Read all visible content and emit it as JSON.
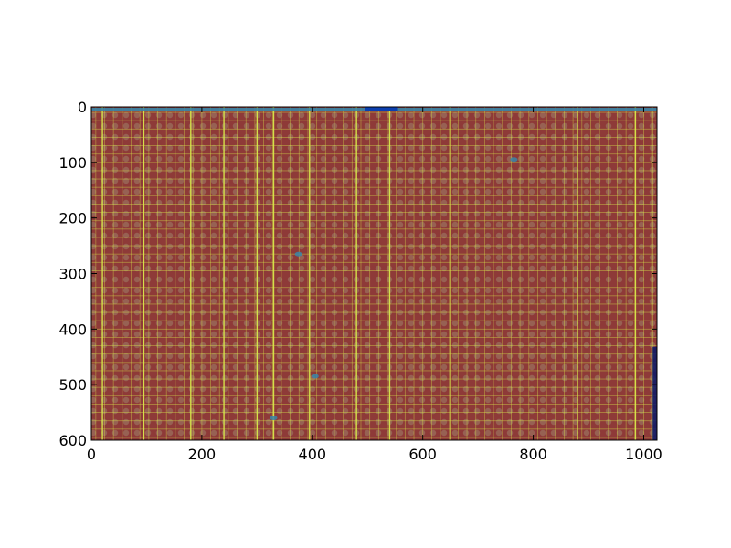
{
  "chart_data": {
    "type": "heatmap",
    "title": "",
    "xlabel": "",
    "ylabel": "",
    "xlim": [
      0,
      1024
    ],
    "ylim": [
      600,
      0
    ],
    "y_axis_inverted": true,
    "grid": false,
    "xticks": [
      0,
      200,
      400,
      600,
      800,
      1000
    ],
    "xtick_labels": [
      "0",
      "200",
      "400",
      "600",
      "800",
      "1000"
    ],
    "yticks": [
      0,
      100,
      200,
      300,
      400,
      500,
      600
    ],
    "ytick_labels": [
      "0",
      "100",
      "200",
      "300",
      "400",
      "500",
      "600"
    ],
    "image_description_colormap": "jet-like",
    "colors": {
      "dominant": "#8e3a38",
      "spot": "#9a6a5a",
      "grid_line": "#d8e84a",
      "top_band": "#3a86a8",
      "blue_patch": "#0b3fb0",
      "right_edge": "#0a1a6a"
    },
    "bright_vertical_lines_x": [
      20,
      95,
      180,
      240,
      300,
      330,
      395,
      480,
      540,
      650,
      880,
      985,
      1015
    ],
    "horizontal_line_y_start": 10,
    "horizontal_line_step": 15,
    "blue_patch_x": [
      495,
      555
    ],
    "blue_patch_y": [
      0,
      8
    ]
  }
}
